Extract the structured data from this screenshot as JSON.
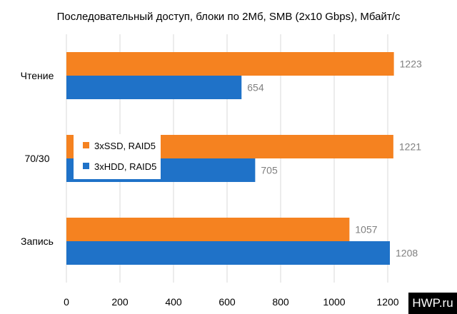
{
  "chart_data": {
    "type": "bar",
    "orientation": "horizontal",
    "title": "Последовательный доступ, блоки по 2Мб, SMB (2х10 Gbps), Мбайт/с",
    "categories": [
      "Чтение",
      "70/30",
      "Запись"
    ],
    "series": [
      {
        "name": "3xSSD, RAID5",
        "color": "#f58220",
        "values": [
          1223,
          1221,
          1057
        ]
      },
      {
        "name": "3xHDD, RAID5",
        "color": "#1f72c8",
        "values": [
          654,
          705,
          1208
        ]
      }
    ],
    "xlim": [
      0,
      1200
    ],
    "xticks": [
      0,
      200,
      400,
      600,
      800,
      1000,
      1200
    ],
    "grid": true,
    "legend_position": "inside-left-middle"
  },
  "watermark": "HWP.ru"
}
